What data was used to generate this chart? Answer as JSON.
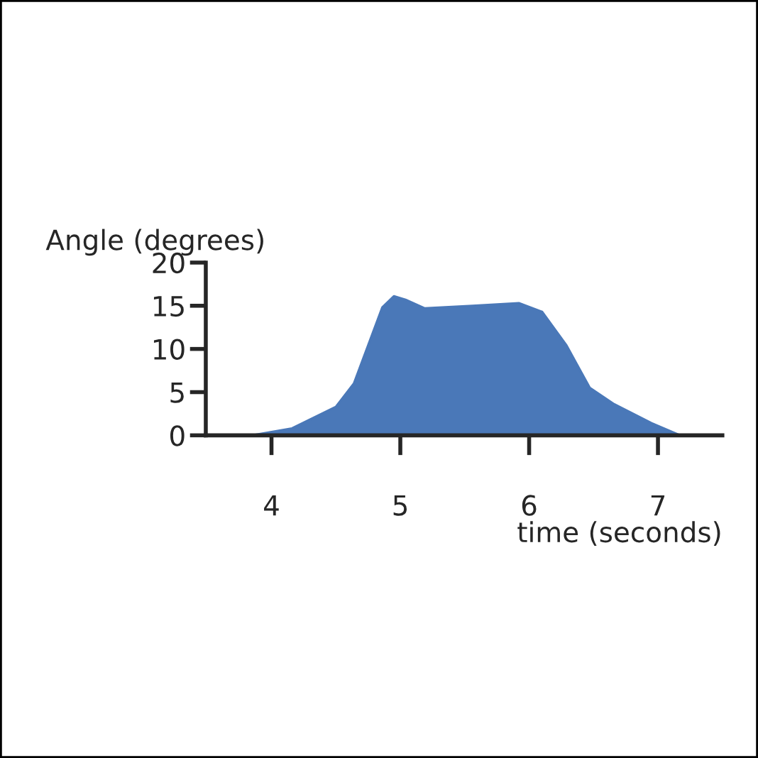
{
  "chart_data": {
    "type": "area",
    "xlabel": "time (seconds)",
    "ylabel": "Angle (degrees)",
    "x": [
      3.85,
      4.16,
      4.5,
      4.64,
      4.75,
      4.86,
      4.95,
      5.04,
      5.19,
      5.56,
      5.92,
      6.1,
      6.29,
      6.47,
      6.66,
      6.95,
      7.17
    ],
    "series": [
      {
        "color": "#4a78b8",
        "values": [
          0,
          0.8,
          3.3,
          6,
          10.4,
          14.8,
          16.1,
          15.7,
          14.7,
          15,
          15.3,
          14.3,
          10.4,
          5.5,
          3.6,
          1.4,
          0
        ]
      }
    ],
    "xlim": [
      3.49,
      7.5
    ],
    "ylim": [
      0,
      20
    ],
    "xticks": [
      4,
      5,
      6,
      7
    ],
    "yticks": [
      0,
      5,
      10,
      15,
      20
    ],
    "grid": false,
    "legend": false
  }
}
